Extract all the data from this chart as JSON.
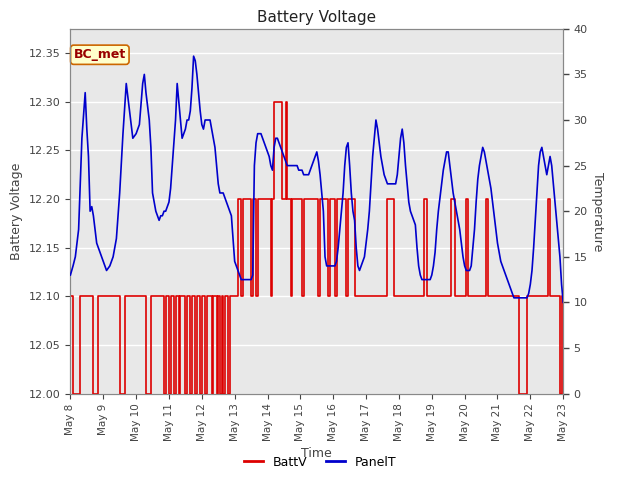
{
  "title": "Battery Voltage",
  "xlabel": "Time",
  "ylabel_left": "Battery Voltage",
  "ylabel_right": "Temperature",
  "ylim_left": [
    12.0,
    12.375
  ],
  "ylim_right": [
    0,
    40
  ],
  "fig_bg_color": "#e8e8e8",
  "plot_bg_color": "#d8d8d8",
  "annotation_text": "BC_met",
  "annotation_bg": "#ffffcc",
  "annotation_border": "#cc6600",
  "annotation_text_color": "#990000",
  "legend_labels": [
    "BattV",
    "PanelT"
  ],
  "legend_colors": [
    "#dd0000",
    "#0000cc"
  ],
  "batt_color": "#dd0000",
  "panel_color": "#0000cc",
  "batt_data": [
    [
      8.0,
      12.1
    ],
    [
      8.08,
      12.1
    ],
    [
      8.08,
      12.0
    ],
    [
      8.3,
      12.0
    ],
    [
      8.3,
      12.1
    ],
    [
      8.7,
      12.1
    ],
    [
      8.7,
      12.0
    ],
    [
      8.85,
      12.0
    ],
    [
      8.85,
      12.1
    ],
    [
      9.5,
      12.1
    ],
    [
      9.5,
      12.0
    ],
    [
      9.65,
      12.0
    ],
    [
      9.65,
      12.1
    ],
    [
      10.3,
      12.1
    ],
    [
      10.3,
      12.0
    ],
    [
      10.45,
      12.0
    ],
    [
      10.45,
      12.1
    ],
    [
      10.85,
      12.1
    ],
    [
      10.85,
      12.0
    ],
    [
      10.9,
      12.0
    ],
    [
      10.9,
      12.1
    ],
    [
      11.0,
      12.1
    ],
    [
      11.0,
      12.0
    ],
    [
      11.05,
      12.0
    ],
    [
      11.05,
      12.1
    ],
    [
      11.15,
      12.1
    ],
    [
      11.15,
      12.0
    ],
    [
      11.2,
      12.0
    ],
    [
      11.2,
      12.1
    ],
    [
      11.3,
      12.1
    ],
    [
      11.3,
      12.0
    ],
    [
      11.35,
      12.0
    ],
    [
      11.35,
      12.1
    ],
    [
      11.5,
      12.1
    ],
    [
      11.5,
      12.0
    ],
    [
      11.55,
      12.0
    ],
    [
      11.55,
      12.1
    ],
    [
      11.65,
      12.1
    ],
    [
      11.65,
      12.0
    ],
    [
      11.7,
      12.0
    ],
    [
      11.7,
      12.1
    ],
    [
      11.8,
      12.1
    ],
    [
      11.8,
      12.0
    ],
    [
      11.85,
      12.0
    ],
    [
      11.85,
      12.1
    ],
    [
      11.95,
      12.1
    ],
    [
      11.95,
      12.0
    ],
    [
      12.0,
      12.0
    ],
    [
      12.0,
      12.1
    ],
    [
      12.1,
      12.1
    ],
    [
      12.1,
      12.0
    ],
    [
      12.15,
      12.0
    ],
    [
      12.15,
      12.1
    ],
    [
      12.3,
      12.1
    ],
    [
      12.3,
      12.0
    ],
    [
      12.35,
      12.0
    ],
    [
      12.35,
      12.1
    ],
    [
      12.45,
      12.1
    ],
    [
      12.45,
      12.0
    ],
    [
      12.5,
      12.0
    ],
    [
      12.5,
      12.1
    ],
    [
      12.55,
      12.1
    ],
    [
      12.55,
      12.0
    ],
    [
      12.6,
      12.0
    ],
    [
      12.6,
      12.1
    ],
    [
      12.65,
      12.1
    ],
    [
      12.65,
      12.0
    ],
    [
      12.7,
      12.0
    ],
    [
      12.7,
      12.1
    ],
    [
      12.8,
      12.1
    ],
    [
      12.8,
      12.0
    ],
    [
      12.85,
      12.0
    ],
    [
      12.85,
      12.1
    ],
    [
      12.95,
      12.1
    ],
    [
      12.95,
      12.1
    ],
    [
      13.0,
      12.1
    ],
    [
      13.0,
      12.1
    ],
    [
      13.05,
      12.1
    ],
    [
      13.05,
      12.1
    ],
    [
      13.1,
      12.1
    ],
    [
      13.1,
      12.2
    ],
    [
      13.2,
      12.2
    ],
    [
      13.2,
      12.1
    ],
    [
      13.25,
      12.1
    ],
    [
      13.25,
      12.2
    ],
    [
      13.5,
      12.2
    ],
    [
      13.5,
      12.1
    ],
    [
      13.55,
      12.1
    ],
    [
      13.55,
      12.2
    ],
    [
      13.65,
      12.2
    ],
    [
      13.65,
      12.1
    ],
    [
      13.7,
      12.1
    ],
    [
      13.7,
      12.2
    ],
    [
      14.1,
      12.2
    ],
    [
      14.1,
      12.1
    ],
    [
      14.15,
      12.1
    ],
    [
      14.15,
      12.2
    ],
    [
      14.2,
      12.2
    ],
    [
      14.2,
      12.3
    ],
    [
      14.45,
      12.3
    ],
    [
      14.45,
      12.2
    ],
    [
      14.55,
      12.2
    ],
    [
      14.55,
      12.3
    ],
    [
      14.6,
      12.3
    ],
    [
      14.6,
      12.2
    ],
    [
      14.7,
      12.2
    ],
    [
      14.7,
      12.1
    ],
    [
      14.75,
      12.1
    ],
    [
      14.75,
      12.2
    ],
    [
      15.05,
      12.2
    ],
    [
      15.05,
      12.1
    ],
    [
      15.1,
      12.1
    ],
    [
      15.1,
      12.2
    ],
    [
      15.55,
      12.2
    ],
    [
      15.55,
      12.1
    ],
    [
      15.6,
      12.1
    ],
    [
      15.6,
      12.2
    ],
    [
      15.85,
      12.2
    ],
    [
      15.85,
      12.1
    ],
    [
      15.9,
      12.1
    ],
    [
      15.9,
      12.2
    ],
    [
      16.05,
      12.2
    ],
    [
      16.05,
      12.1
    ],
    [
      16.1,
      12.1
    ],
    [
      16.1,
      12.2
    ],
    [
      16.4,
      12.2
    ],
    [
      16.4,
      12.1
    ],
    [
      16.45,
      12.1
    ],
    [
      16.45,
      12.2
    ],
    [
      16.65,
      12.2
    ],
    [
      16.65,
      12.1
    ],
    [
      17.65,
      12.1
    ],
    [
      17.65,
      12.2
    ],
    [
      17.85,
      12.2
    ],
    [
      17.85,
      12.1
    ],
    [
      18.75,
      12.1
    ],
    [
      18.75,
      12.2
    ],
    [
      18.85,
      12.2
    ],
    [
      18.85,
      12.1
    ],
    [
      19.6,
      12.1
    ],
    [
      19.6,
      12.2
    ],
    [
      19.7,
      12.2
    ],
    [
      19.7,
      12.1
    ],
    [
      20.05,
      12.1
    ],
    [
      20.05,
      12.2
    ],
    [
      20.1,
      12.2
    ],
    [
      20.1,
      12.1
    ],
    [
      20.65,
      12.1
    ],
    [
      20.65,
      12.2
    ],
    [
      20.7,
      12.2
    ],
    [
      20.7,
      12.1
    ],
    [
      21.65,
      12.1
    ],
    [
      21.65,
      12.0
    ],
    [
      21.9,
      12.0
    ],
    [
      21.9,
      12.1
    ],
    [
      22.55,
      12.1
    ],
    [
      22.55,
      12.2
    ],
    [
      22.6,
      12.2
    ],
    [
      22.6,
      12.1
    ],
    [
      22.9,
      12.1
    ],
    [
      22.9,
      12.0
    ],
    [
      22.95,
      12.0
    ],
    [
      22.95,
      12.1
    ],
    [
      23.0,
      12.1
    ]
  ],
  "panel_data": [
    [
      8.0,
      13.0
    ],
    [
      8.08,
      14.0
    ],
    [
      8.15,
      15.0
    ],
    [
      8.25,
      18.0
    ],
    [
      8.35,
      28.0
    ],
    [
      8.45,
      33.0
    ],
    [
      8.5,
      29.0
    ],
    [
      8.55,
      26.0
    ],
    [
      8.6,
      20.0
    ],
    [
      8.65,
      20.5
    ],
    [
      8.7,
      19.5
    ],
    [
      8.75,
      18.0
    ],
    [
      8.8,
      16.5
    ],
    [
      8.9,
      15.5
    ],
    [
      8.95,
      15.0
    ],
    [
      9.0,
      14.5
    ],
    [
      9.05,
      14.0
    ],
    [
      9.1,
      13.5
    ],
    [
      9.2,
      14.0
    ],
    [
      9.3,
      15.0
    ],
    [
      9.4,
      17.0
    ],
    [
      9.5,
      22.0
    ],
    [
      9.6,
      28.5
    ],
    [
      9.7,
      34.0
    ],
    [
      9.8,
      31.0
    ],
    [
      9.9,
      28.0
    ],
    [
      10.0,
      28.5
    ],
    [
      10.1,
      29.5
    ],
    [
      10.2,
      34.0
    ],
    [
      10.25,
      35.0
    ],
    [
      10.3,
      33.0
    ],
    [
      10.4,
      30.0
    ],
    [
      10.45,
      27.0
    ],
    [
      10.5,
      22.0
    ],
    [
      10.6,
      20.0
    ],
    [
      10.65,
      19.5
    ],
    [
      10.7,
      19.0
    ],
    [
      10.75,
      19.5
    ],
    [
      10.8,
      19.5
    ],
    [
      10.85,
      20.0
    ],
    [
      10.9,
      20.0
    ],
    [
      11.0,
      21.0
    ],
    [
      11.05,
      22.5
    ],
    [
      11.1,
      25.0
    ],
    [
      11.2,
      30.0
    ],
    [
      11.25,
      34.0
    ],
    [
      11.3,
      32.0
    ],
    [
      11.35,
      30.0
    ],
    [
      11.4,
      28.0
    ],
    [
      11.45,
      28.5
    ],
    [
      11.5,
      29.0
    ],
    [
      11.55,
      30.0
    ],
    [
      11.6,
      30.0
    ],
    [
      11.65,
      31.0
    ],
    [
      11.7,
      33.5
    ],
    [
      11.75,
      37.0
    ],
    [
      11.8,
      36.5
    ],
    [
      11.85,
      35.0
    ],
    [
      11.9,
      33.0
    ],
    [
      11.95,
      31.0
    ],
    [
      12.0,
      29.5
    ],
    [
      12.05,
      29.0
    ],
    [
      12.1,
      30.0
    ],
    [
      12.15,
      30.0
    ],
    [
      12.2,
      30.0
    ],
    [
      12.25,
      30.0
    ],
    [
      12.3,
      29.0
    ],
    [
      12.35,
      28.0
    ],
    [
      12.4,
      27.0
    ],
    [
      12.45,
      25.0
    ],
    [
      12.5,
      23.0
    ],
    [
      12.55,
      22.0
    ],
    [
      12.6,
      22.0
    ],
    [
      12.65,
      22.0
    ],
    [
      12.7,
      21.5
    ],
    [
      12.75,
      21.0
    ],
    [
      12.8,
      20.5
    ],
    [
      12.85,
      20.0
    ],
    [
      12.9,
      19.5
    ],
    [
      12.95,
      17.0
    ],
    [
      13.0,
      14.5
    ],
    [
      13.05,
      14.0
    ],
    [
      13.1,
      13.5
    ],
    [
      13.15,
      13.0
    ],
    [
      13.2,
      12.5
    ],
    [
      13.3,
      12.5
    ],
    [
      13.4,
      12.5
    ],
    [
      13.45,
      12.5
    ],
    [
      13.5,
      12.5
    ],
    [
      13.55,
      13.0
    ],
    [
      13.6,
      25.0
    ],
    [
      13.65,
      27.5
    ],
    [
      13.7,
      28.5
    ],
    [
      13.75,
      28.5
    ],
    [
      13.8,
      28.5
    ],
    [
      13.85,
      28.0
    ],
    [
      13.9,
      27.5
    ],
    [
      13.95,
      27.0
    ],
    [
      14.0,
      26.5
    ],
    [
      14.05,
      26.0
    ],
    [
      14.1,
      25.0
    ],
    [
      14.15,
      24.5
    ],
    [
      14.2,
      27.0
    ],
    [
      14.25,
      28.0
    ],
    [
      14.3,
      28.0
    ],
    [
      14.35,
      27.5
    ],
    [
      14.4,
      27.0
    ],
    [
      14.45,
      26.5
    ],
    [
      14.5,
      26.0
    ],
    [
      14.55,
      25.5
    ],
    [
      14.6,
      25.0
    ],
    [
      14.65,
      25.0
    ],
    [
      14.7,
      25.0
    ],
    [
      14.75,
      25.0
    ],
    [
      14.8,
      25.0
    ],
    [
      14.85,
      25.0
    ],
    [
      14.9,
      25.0
    ],
    [
      14.95,
      24.5
    ],
    [
      15.0,
      24.5
    ],
    [
      15.05,
      24.5
    ],
    [
      15.1,
      24.0
    ],
    [
      15.15,
      24.0
    ],
    [
      15.2,
      24.0
    ],
    [
      15.25,
      24.0
    ],
    [
      15.3,
      24.5
    ],
    [
      15.35,
      25.0
    ],
    [
      15.4,
      25.5
    ],
    [
      15.45,
      26.0
    ],
    [
      15.5,
      26.5
    ],
    [
      15.55,
      25.5
    ],
    [
      15.6,
      24.0
    ],
    [
      15.65,
      22.0
    ],
    [
      15.7,
      20.0
    ],
    [
      15.75,
      15.0
    ],
    [
      15.8,
      14.0
    ],
    [
      15.85,
      14.0
    ],
    [
      15.9,
      14.0
    ],
    [
      15.95,
      14.0
    ],
    [
      16.0,
      14.0
    ],
    [
      16.05,
      14.0
    ],
    [
      16.1,
      14.5
    ],
    [
      16.15,
      16.0
    ],
    [
      16.2,
      18.0
    ],
    [
      16.25,
      20.0
    ],
    [
      16.3,
      22.0
    ],
    [
      16.35,
      25.0
    ],
    [
      16.4,
      27.0
    ],
    [
      16.45,
      27.5
    ],
    [
      16.5,
      25.0
    ],
    [
      16.55,
      22.0
    ],
    [
      16.6,
      20.0
    ],
    [
      16.65,
      19.0
    ],
    [
      16.7,
      16.0
    ],
    [
      16.75,
      14.0
    ],
    [
      16.8,
      13.5
    ],
    [
      16.85,
      14.0
    ],
    [
      16.9,
      14.5
    ],
    [
      16.95,
      15.0
    ],
    [
      17.0,
      16.5
    ],
    [
      17.05,
      18.0
    ],
    [
      17.1,
      20.0
    ],
    [
      17.15,
      23.0
    ],
    [
      17.2,
      26.0
    ],
    [
      17.25,
      28.0
    ],
    [
      17.3,
      30.0
    ],
    [
      17.35,
      29.0
    ],
    [
      17.4,
      27.5
    ],
    [
      17.45,
      26.0
    ],
    [
      17.5,
      25.0
    ],
    [
      17.55,
      24.0
    ],
    [
      17.6,
      23.5
    ],
    [
      17.65,
      23.0
    ],
    [
      17.7,
      23.0
    ],
    [
      17.75,
      23.0
    ],
    [
      17.8,
      23.0
    ],
    [
      17.85,
      23.0
    ],
    [
      17.9,
      23.0
    ],
    [
      17.95,
      24.0
    ],
    [
      18.0,
      26.0
    ],
    [
      18.05,
      28.0
    ],
    [
      18.1,
      29.0
    ],
    [
      18.15,
      27.5
    ],
    [
      18.2,
      25.0
    ],
    [
      18.25,
      23.0
    ],
    [
      18.3,
      21.0
    ],
    [
      18.35,
      20.0
    ],
    [
      18.4,
      19.5
    ],
    [
      18.45,
      19.0
    ],
    [
      18.5,
      18.5
    ],
    [
      18.55,
      16.0
    ],
    [
      18.6,
      14.0
    ],
    [
      18.65,
      13.0
    ],
    [
      18.7,
      12.5
    ],
    [
      18.75,
      12.5
    ],
    [
      18.8,
      12.5
    ],
    [
      18.85,
      12.5
    ],
    [
      18.9,
      12.5
    ],
    [
      18.95,
      12.5
    ],
    [
      19.0,
      13.0
    ],
    [
      19.05,
      14.0
    ],
    [
      19.1,
      15.5
    ],
    [
      19.15,
      18.0
    ],
    [
      19.2,
      20.0
    ],
    [
      19.25,
      21.5
    ],
    [
      19.3,
      23.0
    ],
    [
      19.35,
      24.5
    ],
    [
      19.4,
      25.5
    ],
    [
      19.45,
      26.5
    ],
    [
      19.5,
      26.5
    ],
    [
      19.55,
      25.0
    ],
    [
      19.6,
      23.5
    ],
    [
      19.65,
      22.0
    ],
    [
      19.7,
      21.0
    ],
    [
      19.75,
      20.0
    ],
    [
      19.8,
      19.0
    ],
    [
      19.85,
      18.0
    ],
    [
      19.9,
      16.5
    ],
    [
      19.95,
      15.0
    ],
    [
      20.0,
      14.0
    ],
    [
      20.05,
      13.5
    ],
    [
      20.1,
      13.5
    ],
    [
      20.15,
      13.5
    ],
    [
      20.2,
      14.0
    ],
    [
      20.25,
      16.0
    ],
    [
      20.3,
      18.0
    ],
    [
      20.35,
      21.0
    ],
    [
      20.4,
      23.5
    ],
    [
      20.45,
      25.0
    ],
    [
      20.5,
      26.0
    ],
    [
      20.55,
      27.0
    ],
    [
      20.6,
      26.5
    ],
    [
      20.65,
      25.5
    ],
    [
      20.7,
      24.5
    ],
    [
      20.75,
      23.5
    ],
    [
      20.8,
      22.5
    ],
    [
      20.85,
      21.0
    ],
    [
      20.9,
      19.5
    ],
    [
      20.95,
      18.0
    ],
    [
      21.0,
      16.5
    ],
    [
      21.05,
      15.5
    ],
    [
      21.1,
      14.5
    ],
    [
      21.15,
      14.0
    ],
    [
      21.2,
      13.5
    ],
    [
      21.25,
      13.0
    ],
    [
      21.3,
      12.5
    ],
    [
      21.35,
      12.0
    ],
    [
      21.4,
      11.5
    ],
    [
      21.45,
      11.0
    ],
    [
      21.5,
      10.5
    ],
    [
      21.55,
      10.5
    ],
    [
      21.6,
      10.5
    ],
    [
      21.65,
      10.5
    ],
    [
      21.7,
      10.5
    ],
    [
      21.75,
      10.5
    ],
    [
      21.8,
      10.5
    ],
    [
      21.85,
      10.5
    ],
    [
      21.9,
      10.5
    ],
    [
      21.95,
      11.0
    ],
    [
      22.0,
      12.0
    ],
    [
      22.05,
      13.5
    ],
    [
      22.1,
      16.0
    ],
    [
      22.15,
      19.0
    ],
    [
      22.2,
      22.0
    ],
    [
      22.25,
      25.0
    ],
    [
      22.3,
      26.5
    ],
    [
      22.35,
      27.0
    ],
    [
      22.4,
      26.0
    ],
    [
      22.45,
      25.0
    ],
    [
      22.5,
      24.0
    ],
    [
      22.55,
      25.0
    ],
    [
      22.6,
      26.0
    ],
    [
      22.65,
      25.0
    ],
    [
      22.7,
      23.0
    ],
    [
      22.75,
      21.0
    ],
    [
      22.8,
      19.0
    ],
    [
      22.85,
      17.0
    ],
    [
      22.9,
      15.0
    ],
    [
      22.95,
      12.0
    ],
    [
      23.0,
      10.0
    ]
  ],
  "xtick_labels": [
    "May 8",
    "May 9",
    "May 10",
    "May 11",
    "May 12",
    "May 13",
    "May 14",
    "May 15",
    "May 16",
    "May 17",
    "May 18",
    "May 19",
    "May 20",
    "May 21",
    "May 22",
    "May 23"
  ],
  "xtick_positions": [
    8,
    9,
    10,
    11,
    12,
    13,
    14,
    15,
    16,
    17,
    18,
    19,
    20,
    21,
    22,
    23
  ],
  "yticks_left": [
    12.0,
    12.05,
    12.1,
    12.15,
    12.2,
    12.25,
    12.3,
    12.35
  ],
  "yticks_right": [
    0,
    5,
    10,
    15,
    20,
    25,
    30,
    35,
    40
  ]
}
